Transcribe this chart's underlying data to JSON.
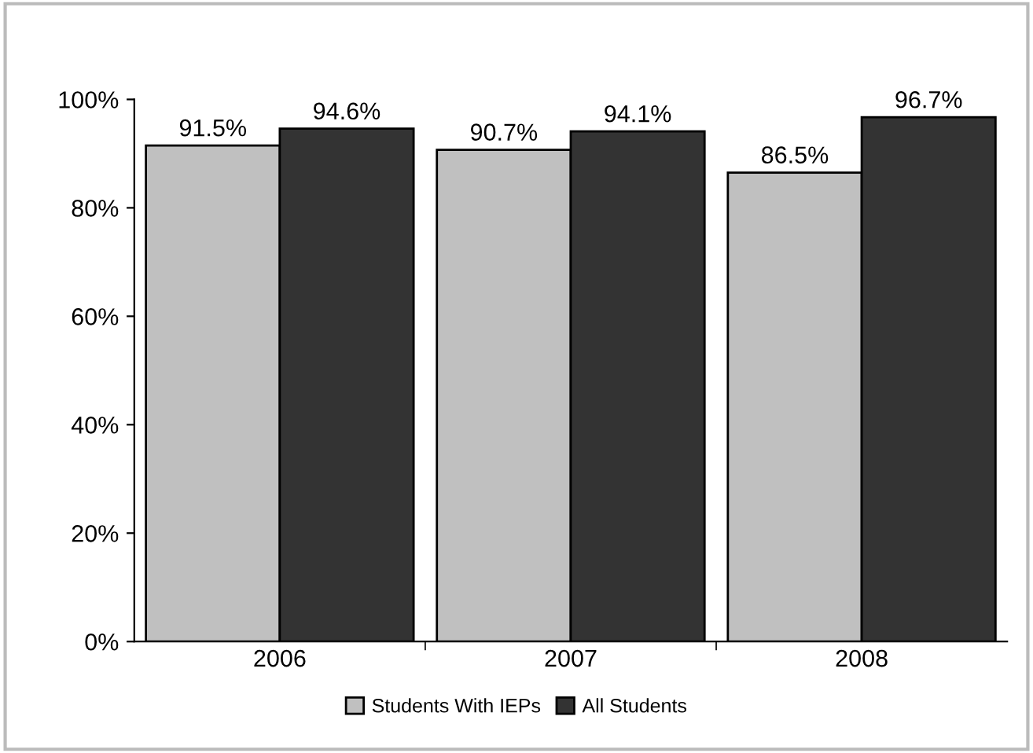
{
  "chart_data": {
    "type": "bar",
    "categories": [
      "2006",
      "2007",
      "2008"
    ],
    "series": [
      {
        "name": "Students With IEPs",
        "color": "#c0c0c0",
        "values": [
          91.5,
          90.7,
          86.5
        ],
        "value_labels": [
          "91.5%",
          "90.7%",
          "86.5%"
        ]
      },
      {
        "name": "All Students",
        "color": "#333333",
        "values": [
          94.6,
          94.1,
          96.7
        ],
        "value_labels": [
          "94.6%",
          "94.1%",
          "96.7%"
        ]
      }
    ],
    "ylim": [
      0,
      100
    ],
    "yticks": [
      {
        "value": 0,
        "label": "0%"
      },
      {
        "value": 20,
        "label": "20%"
      },
      {
        "value": 40,
        "label": "40%"
      },
      {
        "value": 60,
        "label": "60%"
      },
      {
        "value": 80,
        "label": "80%"
      },
      {
        "value": 100,
        "label": "100%"
      }
    ],
    "grid": false,
    "legend": "bottom"
  }
}
